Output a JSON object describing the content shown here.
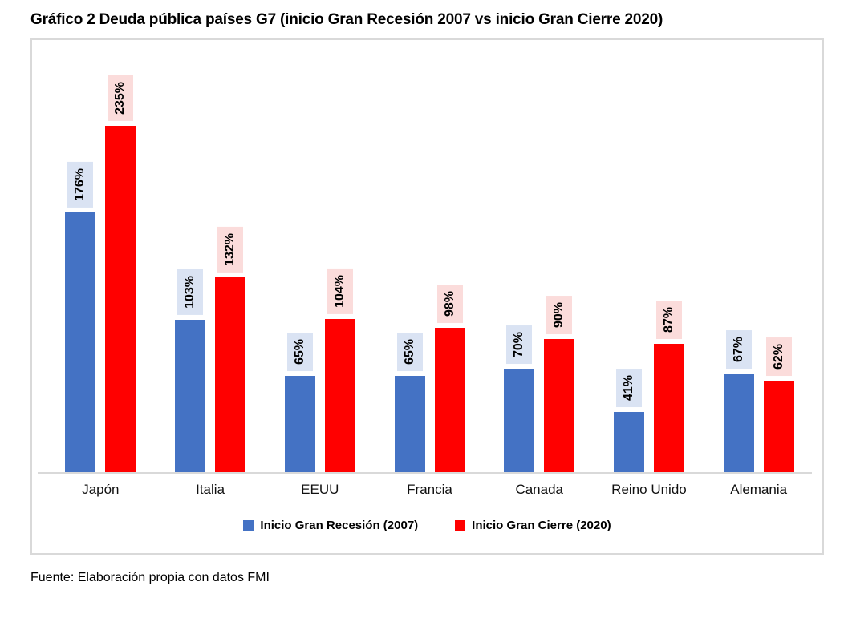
{
  "title": "Gráfico 2 Deuda pública países G7 (inicio Gran Recesión 2007 vs inicio Gran Cierre 2020)",
  "source": "Fuente: Elaboración propia con datos FMI",
  "colors": {
    "series_2007": "#4472C4",
    "series_2020": "#FF0000",
    "label_bg_2007": "#DAE3F3",
    "label_bg_2020": "#FBDCDB",
    "axis_gray": "#D9D9D9"
  },
  "chart_data": {
    "type": "bar",
    "categories": [
      "Japón",
      "Italia",
      "EEUU",
      "Francia",
      "Canada",
      "Reino Unido",
      "Alemania"
    ],
    "series": [
      {
        "name": "Inicio Gran Recesión (2007)",
        "color": "#4472C4",
        "label_bg": "#DAE3F3",
        "values": [
          176,
          103,
          65,
          65,
          70,
          41,
          67
        ]
      },
      {
        "name": "Inicio Gran Cierre (2020)",
        "color": "#FF0000",
        "label_bg": "#FBDCDB",
        "values": [
          235,
          132,
          104,
          98,
          90,
          87,
          62
        ]
      }
    ],
    "value_suffix": "%",
    "data_labels": "rotated-90-above-bars",
    "xlabel": "",
    "ylabel": "",
    "ylim": [
      0,
      293
    ],
    "grid": false,
    "y_axis_visible": false,
    "legend_position": "bottom-center"
  }
}
